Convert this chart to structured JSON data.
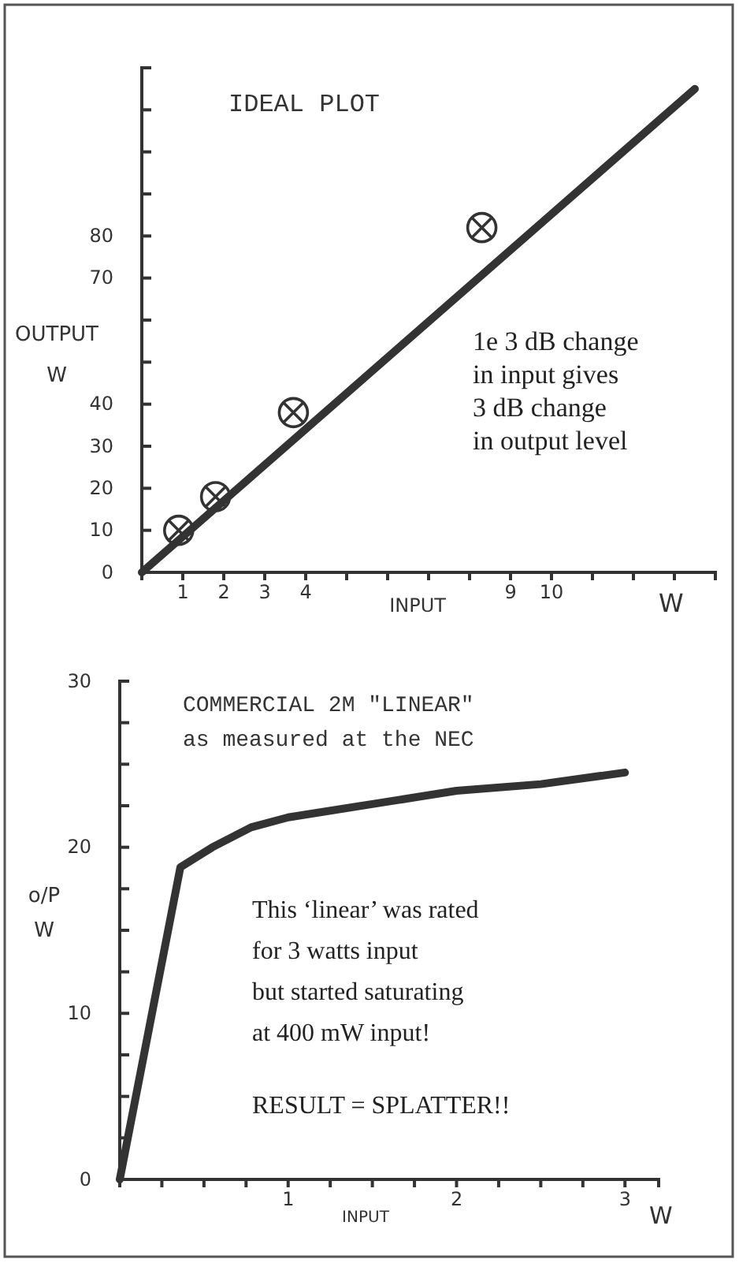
{
  "chart_data": [
    {
      "type": "line",
      "title": "IDEAL PLOT",
      "xlabel": "INPUT",
      "ylabel": "OUTPUT W",
      "annotations": [
        "1e 3 dB change\nin input gives\n3 dB change\nin output level",
        "W"
      ],
      "xlim": [
        0,
        14
      ],
      "ylim": [
        0,
        120
      ],
      "xticks": [
        1,
        2,
        3,
        4,
        {
          "value": 5,
          "label": null
        },
        {
          "value": 6,
          "label": null
        },
        {
          "value": 7,
          "label": null
        },
        {
          "value": 8,
          "label": null
        },
        9,
        10,
        {
          "value": 11,
          "label": null
        },
        {
          "value": 12,
          "label": null
        },
        {
          "value": 13,
          "label": null
        }
      ],
      "yticks": [
        0,
        10,
        20,
        30,
        40,
        {
          "value": 50,
          "label": null
        },
        {
          "value": 60,
          "label": null
        },
        70,
        80,
        {
          "value": 90,
          "label": null
        },
        {
          "value": 100,
          "label": null
        },
        {
          "value": 110,
          "label": null
        },
        {
          "value": 120,
          "label": null
        }
      ],
      "series": [
        {
          "color": "#333333",
          "x": [
            0,
            13.5
          ],
          "values": [
            0,
            115
          ]
        },
        {
          "type": "scatter",
          "color": "#333333",
          "marker": "cross",
          "x": [
            0.9,
            1.8,
            3.7,
            8.3
          ],
          "values": [
            10,
            18,
            38,
            82
          ]
        }
      ]
    },
    {
      "type": "line",
      "title": "COMMERCIAL 2M \"LINEAR\"",
      "subtitle": "as measured at the NEC",
      "xlabel": "INPUT",
      "ylabel": "o/P W",
      "annotations": [
        "This ‘linear’ was rated\nfor 3 watts input\nbut started saturating\nat 400 mW input!",
        "RESULT = SPLATTER!!",
        "W"
      ],
      "xlim": [
        0,
        3.2
      ],
      "ylim": [
        0,
        30
      ],
      "xticks": [
        {
          "value": 0.25,
          "label": null
        },
        {
          "value": 0.5,
          "label": null
        },
        {
          "value": 0.75,
          "label": null
        },
        1,
        {
          "value": 1.25,
          "label": null
        },
        {
          "value": 1.5,
          "label": null
        },
        {
          "value": 1.75,
          "label": null
        },
        2,
        {
          "value": 2.25,
          "label": null
        },
        {
          "value": 2.5,
          "label": null
        },
        {
          "value": 2.75,
          "label": null
        },
        3
      ],
      "yticks": [
        0,
        {
          "value": 2.5,
          "label": null
        },
        {
          "value": 5,
          "label": null
        },
        {
          "value": 7.5,
          "label": null
        },
        10,
        {
          "value": 12.5,
          "label": null
        },
        {
          "value": 15,
          "label": null
        },
        {
          "value": 17.5,
          "label": null
        },
        20,
        {
          "value": 22.5,
          "label": null
        },
        {
          "value": 25,
          "label": null
        },
        {
          "value": 27.5,
          "label": null
        },
        30
      ],
      "series": [
        {
          "color": "#333333",
          "x": [
            0,
            0.36,
            0.55,
            0.78,
            1.0,
            1.5,
            2.0,
            2.5,
            3.0
          ],
          "values": [
            0,
            18.8,
            20.0,
            21.2,
            21.8,
            22.6,
            23.4,
            23.8,
            24.5
          ]
        }
      ]
    }
  ]
}
